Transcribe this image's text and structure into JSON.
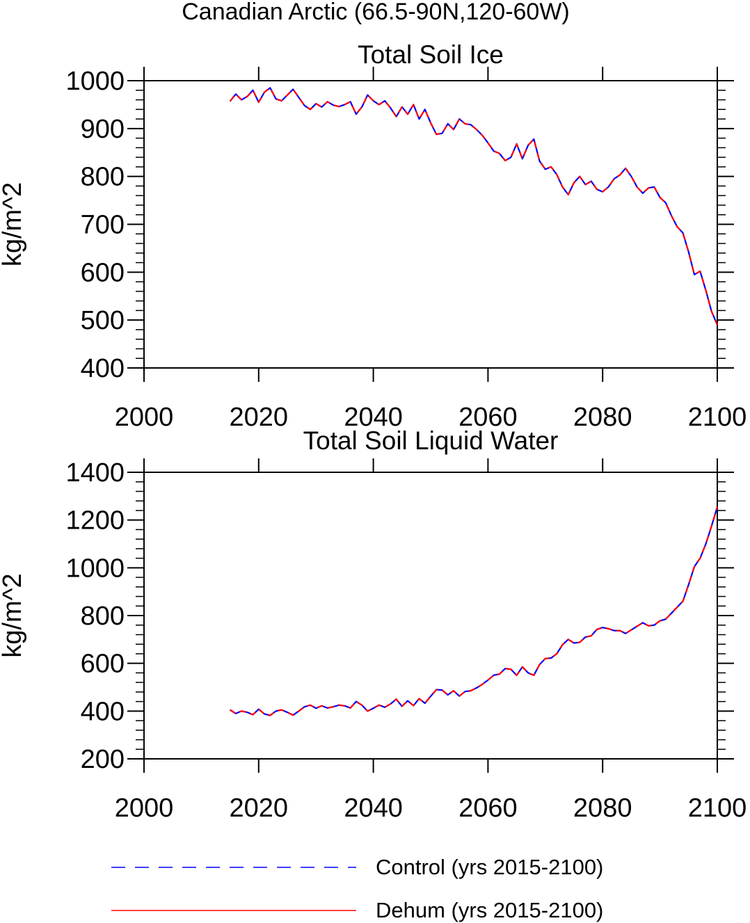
{
  "figure": {
    "title": "Canadian Arctic (66.5-90N,120-60W)"
  },
  "legend": {
    "control_label": "Control (yrs 2015-2100)",
    "dehum_label": "Dehum (yrs 2015-2100)",
    "control_color": "#0000ff",
    "dehum_color": "#ff0000"
  },
  "chart_data": [
    {
      "type": "line",
      "title": "Total Soil Ice",
      "xlabel": "",
      "ylabel": "kg/m^2",
      "xlim": [
        2000,
        2100
      ],
      "ylim": [
        400,
        1000
      ],
      "xticks": [
        2000,
        2020,
        2040,
        2060,
        2080,
        2100
      ],
      "yticks": [
        400,
        500,
        600,
        700,
        800,
        900,
        1000
      ],
      "x": [
        2015,
        2016,
        2017,
        2018,
        2019,
        2020,
        2021,
        2022,
        2023,
        2024,
        2025,
        2026,
        2027,
        2028,
        2029,
        2030,
        2031,
        2032,
        2033,
        2034,
        2035,
        2036,
        2037,
        2038,
        2039,
        2040,
        2041,
        2042,
        2043,
        2044,
        2045,
        2046,
        2047,
        2048,
        2049,
        2050,
        2051,
        2052,
        2053,
        2054,
        2055,
        2056,
        2057,
        2058,
        2059,
        2060,
        2061,
        2062,
        2063,
        2064,
        2065,
        2066,
        2067,
        2068,
        2069,
        2070,
        2071,
        2072,
        2073,
        2074,
        2075,
        2076,
        2077,
        2078,
        2079,
        2080,
        2081,
        2082,
        2083,
        2084,
        2085,
        2086,
        2087,
        2088,
        2089,
        2090,
        2091,
        2092,
        2093,
        2094,
        2095,
        2096,
        2097,
        2098,
        2099,
        2100
      ],
      "series": [
        {
          "name": "Control (yrs 2015-2100)",
          "values": [
            957,
            972,
            960,
            967,
            980,
            955,
            976,
            985,
            962,
            958,
            970,
            982,
            965,
            948,
            940,
            952,
            945,
            956,
            949,
            946,
            950,
            956,
            930,
            945,
            970,
            958,
            950,
            958,
            943,
            925,
            945,
            930,
            950,
            920,
            940,
            912,
            888,
            890,
            910,
            898,
            920,
            910,
            908,
            898,
            886,
            870,
            853,
            848,
            833,
            840,
            868,
            837,
            865,
            878,
            832,
            815,
            820,
            804,
            778,
            762,
            787,
            800,
            783,
            790,
            773,
            768,
            778,
            795,
            803,
            817,
            800,
            778,
            765,
            776,
            778,
            756,
            745,
            718,
            695,
            682,
            642,
            595,
            602,
            562,
            518,
            490
          ]
        },
        {
          "name": "Dehum (yrs 2015-2100)",
          "values": [
            957,
            972,
            960,
            967,
            980,
            955,
            976,
            985,
            962,
            958,
            970,
            982,
            965,
            948,
            940,
            952,
            945,
            956,
            949,
            946,
            950,
            956,
            930,
            945,
            970,
            958,
            950,
            958,
            943,
            925,
            945,
            930,
            950,
            920,
            940,
            912,
            888,
            890,
            910,
            898,
            920,
            910,
            908,
            898,
            886,
            870,
            853,
            848,
            833,
            840,
            868,
            837,
            865,
            878,
            832,
            815,
            820,
            804,
            778,
            762,
            787,
            800,
            783,
            790,
            773,
            768,
            778,
            795,
            803,
            817,
            800,
            778,
            765,
            776,
            778,
            756,
            745,
            718,
            695,
            682,
            642,
            595,
            602,
            562,
            518,
            490
          ]
        }
      ]
    },
    {
      "type": "line",
      "title": "Total Soil Liquid Water",
      "xlabel": "",
      "ylabel": "kg/m^2",
      "xlim": [
        2000,
        2100
      ],
      "ylim": [
        200,
        1400
      ],
      "xticks": [
        2000,
        2020,
        2040,
        2060,
        2080,
        2100
      ],
      "yticks": [
        200,
        400,
        600,
        800,
        1000,
        1200,
        1400
      ],
      "x": [
        2015,
        2016,
        2017,
        2018,
        2019,
        2020,
        2021,
        2022,
        2023,
        2024,
        2025,
        2026,
        2027,
        2028,
        2029,
        2030,
        2031,
        2032,
        2033,
        2034,
        2035,
        2036,
        2037,
        2038,
        2039,
        2040,
        2041,
        2042,
        2043,
        2044,
        2045,
        2046,
        2047,
        2048,
        2049,
        2050,
        2051,
        2052,
        2053,
        2054,
        2055,
        2056,
        2057,
        2058,
        2059,
        2060,
        2061,
        2062,
        2063,
        2064,
        2065,
        2066,
        2067,
        2068,
        2069,
        2070,
        2071,
        2072,
        2073,
        2074,
        2075,
        2076,
        2077,
        2078,
        2079,
        2080,
        2081,
        2082,
        2083,
        2084,
        2085,
        2086,
        2087,
        2088,
        2089,
        2090,
        2091,
        2092,
        2093,
        2094,
        2095,
        2096,
        2097,
        2098,
        2099,
        2100
      ],
      "series": [
        {
          "name": "Control (yrs 2015-2100)",
          "values": [
            405,
            390,
            400,
            395,
            385,
            408,
            388,
            382,
            400,
            405,
            395,
            383,
            400,
            418,
            425,
            412,
            422,
            413,
            418,
            425,
            422,
            413,
            440,
            425,
            400,
            412,
            425,
            416,
            430,
            450,
            420,
            443,
            423,
            452,
            433,
            462,
            490,
            488,
            468,
            485,
            463,
            482,
            485,
            497,
            512,
            530,
            550,
            555,
            578,
            575,
            550,
            585,
            560,
            550,
            595,
            620,
            622,
            640,
            678,
            700,
            685,
            688,
            710,
            715,
            742,
            750,
            745,
            737,
            737,
            725,
            740,
            755,
            770,
            757,
            760,
            778,
            785,
            810,
            835,
            860,
            930,
            1005,
            1040,
            1100,
            1175,
            1255
          ]
        },
        {
          "name": "Dehum (yrs 2015-2100)",
          "values": [
            405,
            390,
            400,
            395,
            385,
            408,
            388,
            382,
            400,
            405,
            395,
            383,
            400,
            418,
            425,
            412,
            422,
            413,
            418,
            425,
            422,
            413,
            440,
            425,
            400,
            412,
            425,
            416,
            430,
            450,
            420,
            443,
            423,
            452,
            433,
            462,
            490,
            488,
            468,
            485,
            463,
            482,
            485,
            497,
            512,
            530,
            550,
            555,
            578,
            575,
            550,
            585,
            560,
            550,
            595,
            620,
            622,
            640,
            678,
            700,
            685,
            688,
            710,
            715,
            742,
            750,
            745,
            737,
            737,
            725,
            740,
            755,
            770,
            757,
            760,
            778,
            785,
            810,
            835,
            860,
            930,
            1005,
            1040,
            1100,
            1175,
            1255
          ]
        }
      ]
    }
  ]
}
